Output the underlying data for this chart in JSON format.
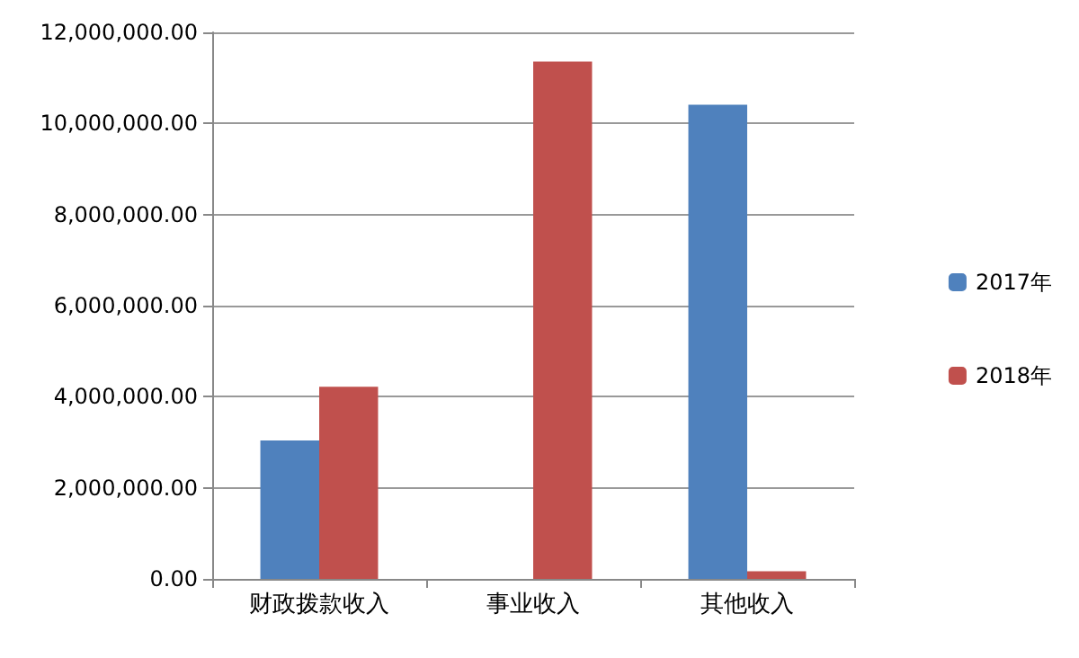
{
  "chart_data": {
    "type": "bar",
    "categories": [
      "财政拨款收入",
      "事业收入",
      "其他收入"
    ],
    "series": [
      {
        "name": "2017年",
        "color": "#4f81bd",
        "values": [
          3040000,
          0,
          10410000
        ]
      },
      {
        "name": "2018年",
        "color": "#c0504d",
        "values": [
          4220000,
          11360000,
          170000
        ]
      }
    ],
    "ylim": [
      0,
      12000000
    ],
    "yticks": [
      {
        "value": 0,
        "label": "0.00"
      },
      {
        "value": 2000000,
        "label": "2,000,000.00"
      },
      {
        "value": 4000000,
        "label": "4,000,000.00"
      },
      {
        "value": 6000000,
        "label": "6,000,000.00"
      },
      {
        "value": 8000000,
        "label": "8,000,000.00"
      },
      {
        "value": 10000000,
        "label": "10,000,000.00"
      },
      {
        "value": 12000000,
        "label": "12,000,000.00"
      }
    ],
    "grid": "y",
    "legend": "right"
  }
}
